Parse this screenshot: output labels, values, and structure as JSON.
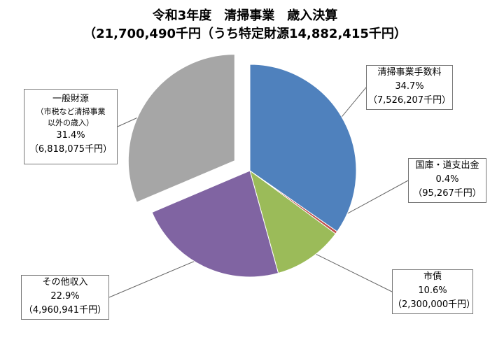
{
  "title": "令和3年度　清掃事業　歳入決算",
  "subtitle": "（21,700,490千円（うち特定財源14,882,415千円）",
  "colors": {
    "cleaning_fees": "#4F81BD",
    "treasury": "#C0504D",
    "bonds": "#9BBB59",
    "other_income": "#8064A2",
    "general_revenue": "#A6A6A6"
  },
  "chart_data": {
    "type": "pie",
    "title": "令和3年度　清掃事業　歳入決算",
    "subtitle": "（21,700,490千円（うち特定財源14,882,415千円）",
    "start_angle_deg": 0,
    "direction": "clockwise",
    "slices": [
      {
        "key": "cleaning_fees",
        "label": "清掃事業手数料",
        "percent": 34.7,
        "percent_label": "34.7%",
        "amount_label": "（7,526,207千円）",
        "value": 7526207,
        "exploded": false
      },
      {
        "key": "treasury",
        "label": "国庫・道支出金",
        "percent": 0.4,
        "percent_label": "0.4%",
        "amount_label": "（95,267千円）",
        "value": 95267,
        "exploded": false
      },
      {
        "key": "bonds",
        "label": "市債",
        "percent": 10.6,
        "percent_label": "10.6%",
        "amount_label": "（2,300,000千円）",
        "value": 2300000,
        "exploded": false
      },
      {
        "key": "other_income",
        "label": "その他収入",
        "percent": 22.9,
        "percent_label": "22.9%",
        "amount_label": "（4,960,941千円）",
        "value": 4960941,
        "exploded": false
      },
      {
        "key": "general_revenue",
        "label": "一般財源",
        "note": "（市税など清掃事業以外の歳入）",
        "note_lines": [
          "（市税など清掃事業",
          "以外の歳入）"
        ],
        "percent": 31.4,
        "percent_label": "31.4%",
        "amount_label": "（6,818,075千円）",
        "value": 6818075,
        "exploded": true
      }
    ]
  }
}
